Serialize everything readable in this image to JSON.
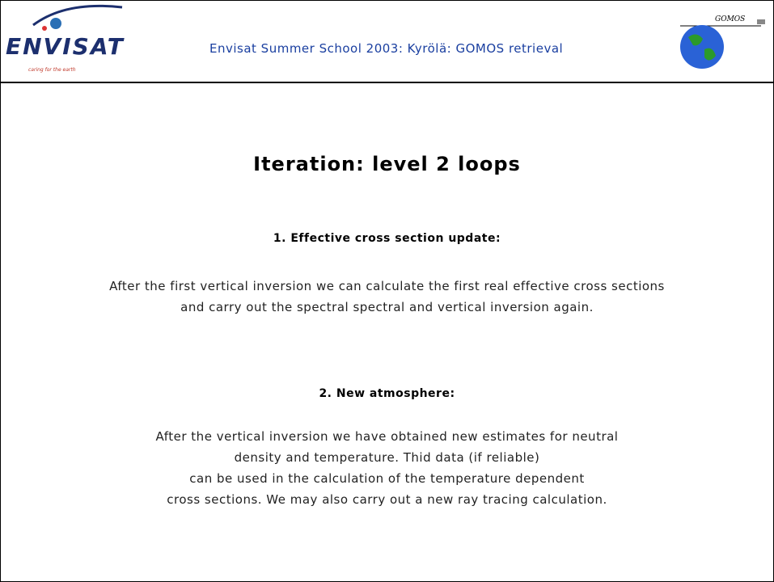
{
  "header": {
    "logo_left": "ENVISAT",
    "logo_left_tagline": "caring for the earth",
    "title": "Envisat Summer School 2003: Kyrölä: GOMOS retrieval",
    "logo_right": "GOMOS"
  },
  "slide": {
    "title": "Iteration: level 2 loops",
    "sections": [
      {
        "heading": "1. Effective cross section update:",
        "lines": [
          "After the first vertical inversion we can calculate the first real effective cross sections",
          "and carry out the spectral spectral and vertical inversion again."
        ]
      },
      {
        "heading": "2. New atmosphere:",
        "lines": [
          "After the vertical inversion we have obtained new estimates for neutral",
          "density and temperature. Thid data (if reliable)",
          "can be used in the calculation of the temperature dependent",
          "cross sections. We may also carry out a new ray tracing calculation."
        ]
      }
    ]
  }
}
